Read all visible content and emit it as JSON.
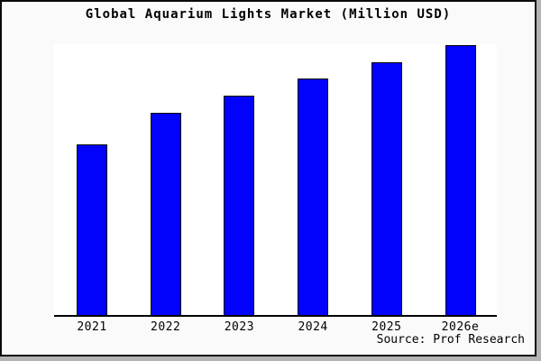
{
  "figure": {
    "title": "Global Aquarium Lights Market (Million USD)",
    "source": "Source: Prof Research"
  },
  "chart_data": {
    "type": "bar",
    "title": "Global Aquarium Lights Market (Million USD)",
    "categories": [
      "2021",
      "2022",
      "2023",
      "2024",
      "2025",
      "2026e"
    ],
    "values": [
      63,
      74.8,
      81.1,
      87.4,
      93.4,
      99.8
    ],
    "values_note": "No y-axis or data labels shown in image; values estimated from bar pixel heights, normalized so 2026e ≈ 100",
    "xlabel": "",
    "ylabel": "",
    "ylim": [
      0,
      100
    ],
    "grid": false,
    "legend_position": "none",
    "source_annotation": "Source: Prof Research",
    "colors": {
      "bar_fill": "#0101fc",
      "bar_edge": "#000000",
      "axis_line": "#000000",
      "plot_background": "#ffffff",
      "figure_background": "#fafafa",
      "figure_border": "#0a0a0a",
      "text": "#000000"
    }
  }
}
